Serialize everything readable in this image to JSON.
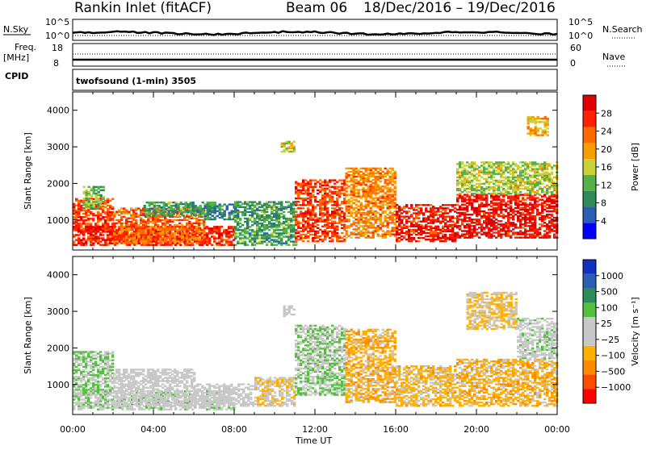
{
  "header": {
    "station": "Rankin Inlet (fitACF)",
    "beam": "Beam 06",
    "date_range": "18/Dec/2016 – 19/Dec/2016"
  },
  "strips": {
    "nsky_label": "N.Sky",
    "nsearch_label": "N.Search",
    "nsky_ticks": [
      "10^5",
      "10^0"
    ],
    "nsearch_ticks": [
      "10^5",
      "10^0"
    ],
    "freq_label": "Freq.",
    "freq_unit": "[MHz]",
    "freq_ticks": [
      "18",
      "8"
    ],
    "nave_label": "Nave",
    "nave_ticks": [
      "60",
      "0"
    ],
    "cpid_label": "CPID",
    "cpid_value": "twofsound (1-min) 3505"
  },
  "colors": {
    "power_scale": [
      "#0000ff",
      "#2a5fb4",
      "#2e8b57",
      "#55b04a",
      "#c8d13a",
      "#f5a000",
      "#ff6a00",
      "#ff2000",
      "#e00000"
    ],
    "velocity_scale": [
      "#ff0000",
      "#ff4a00",
      "#ff8a00",
      "#ffb000",
      "#c8c8c8",
      "#c8c8c8",
      "#55c040",
      "#2e8b57",
      "#2a5fb4",
      "#1030c0"
    ]
  },
  "chart_data": [
    {
      "type": "heatmap",
      "title": "Power",
      "ylabel": "Slant Range [km]",
      "xlabel": "",
      "ylim": [
        180,
        4500
      ],
      "yticks": [
        "1000",
        "2000",
        "3000",
        "4000"
      ],
      "xticks": [
        "00:00",
        "04:00",
        "08:00",
        "12:00",
        "16:00",
        "20:00",
        "00:00"
      ],
      "colorbar": {
        "label": "Power [dB]",
        "ticks": [
          "28",
          "24",
          "20",
          "16",
          "12",
          "8",
          "4"
        ],
        "range": [
          0,
          30
        ]
      },
      "regions": [
        {
          "t0": 0.0,
          "t1": 2.0,
          "r0": 700,
          "r1": 1600,
          "value": 24
        },
        {
          "t0": 0.5,
          "t1": 1.5,
          "r0": 1300,
          "r1": 1900,
          "value": 12
        },
        {
          "t0": 0.0,
          "t1": 8.0,
          "r0": 300,
          "r1": 800,
          "value": 26
        },
        {
          "t0": 2.0,
          "t1": 6.5,
          "r0": 350,
          "r1": 1300,
          "value": 22
        },
        {
          "t0": 3.5,
          "t1": 7.0,
          "r0": 1100,
          "r1": 1500,
          "value": 10
        },
        {
          "t0": 6.5,
          "t1": 8.0,
          "r0": 1000,
          "r1": 1450,
          "value": 8
        },
        {
          "t0": 8.0,
          "t1": 11.0,
          "r0": 300,
          "r1": 1500,
          "value": 10
        },
        {
          "t0": 10.3,
          "t1": 11.0,
          "r0": 2850,
          "r1": 3150,
          "value": 16
        },
        {
          "t0": 11.0,
          "t1": 13.5,
          "r0": 400,
          "r1": 2100,
          "value": 24
        },
        {
          "t0": 13.5,
          "t1": 16.0,
          "r0": 500,
          "r1": 2400,
          "value": 20
        },
        {
          "t0": 16.0,
          "t1": 19.0,
          "r0": 400,
          "r1": 1400,
          "value": 26
        },
        {
          "t0": 19.0,
          "t1": 24.0,
          "r0": 500,
          "r1": 1700,
          "value": 27
        },
        {
          "t0": 19.0,
          "t1": 24.0,
          "r0": 1700,
          "r1": 2600,
          "value": 14
        },
        {
          "t0": 22.5,
          "t1": 23.5,
          "r0": 3300,
          "r1": 3800,
          "value": 18
        }
      ]
    },
    {
      "type": "heatmap",
      "title": "Velocity",
      "ylabel": "Slant Range [km]",
      "xlabel": "Time UT",
      "ylim": [
        180,
        4500
      ],
      "yticks": [
        "1000",
        "2000",
        "3000",
        "4000"
      ],
      "xticks": [
        "00:00",
        "04:00",
        "08:00",
        "12:00",
        "16:00",
        "20:00",
        "00:00"
      ],
      "colorbar": {
        "label": "Velocity [m s⁻¹]",
        "ticks": [
          "1000",
          "500",
          "100",
          "25",
          "−25",
          "−100",
          "−500",
          "−1000"
        ],
        "range": [
          -1000,
          1000
        ]
      },
      "regions": [
        {
          "t0": 0.0,
          "t1": 2.0,
          "r0": 700,
          "r1": 1900,
          "value": 200
        },
        {
          "t0": 0.0,
          "t1": 8.0,
          "r0": 300,
          "r1": 800,
          "value": 120
        },
        {
          "t0": 2.0,
          "t1": 6.0,
          "r0": 400,
          "r1": 1400,
          "value": 0
        },
        {
          "t0": 6.0,
          "t1": 9.0,
          "r0": 400,
          "r1": 1000,
          "value": -10
        },
        {
          "t0": 9.0,
          "t1": 11.0,
          "r0": 400,
          "r1": 1200,
          "value": -150
        },
        {
          "t0": 10.3,
          "t1": 11.0,
          "r0": 2850,
          "r1": 3150,
          "value": 60
        },
        {
          "t0": 11.0,
          "t1": 13.5,
          "r0": 700,
          "r1": 2600,
          "value": 180
        },
        {
          "t0": 13.5,
          "t1": 16.0,
          "r0": 500,
          "r1": 2500,
          "value": -300
        },
        {
          "t0": 16.0,
          "t1": 19.0,
          "r0": 400,
          "r1": 1500,
          "value": -250
        },
        {
          "t0": 19.0,
          "t1": 24.0,
          "r0": 400,
          "r1": 1700,
          "value": -300
        },
        {
          "t0": 19.5,
          "t1": 22.0,
          "r0": 2500,
          "r1": 3500,
          "value": -200
        },
        {
          "t0": 22.0,
          "t1": 24.0,
          "r0": 1700,
          "r1": 2800,
          "value": 80
        }
      ]
    }
  ]
}
